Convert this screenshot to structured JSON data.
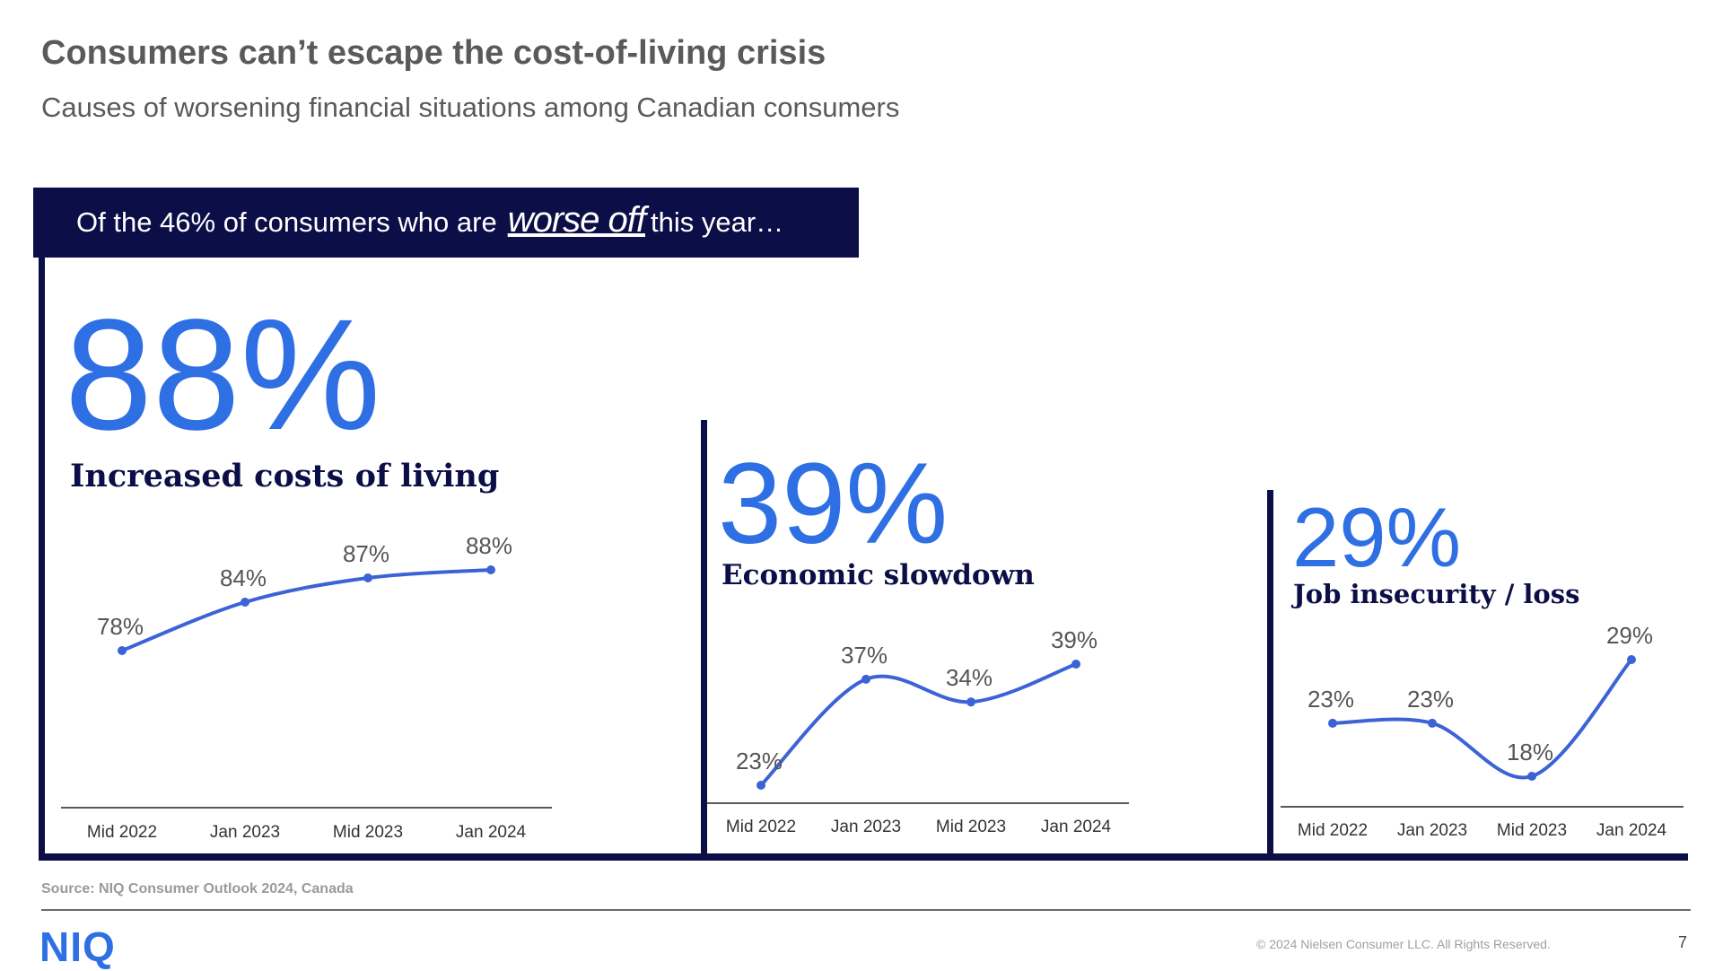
{
  "header": {
    "title": "Consumers can’t escape the cost-of-living crisis",
    "subtitle": "Causes of worsening financial situations among Canadian consumers"
  },
  "banner": {
    "prefix": "Of the 46% of consumers who are",
    "emphasis": "worse off",
    "suffix": "this year…"
  },
  "panels": [
    {
      "percent": "88%",
      "caption": "Increased costs of living"
    },
    {
      "percent": "39%",
      "caption": "Economic slowdown"
    },
    {
      "percent": "29%",
      "caption": "Job insecurity / loss"
    }
  ],
  "chart_data": [
    {
      "type": "line",
      "categories": [
        "Mid 2022",
        "Jan 2023",
        "Mid 2023",
        "Jan 2024"
      ],
      "series": [
        {
          "values": [
            78,
            84,
            87,
            88
          ]
        }
      ],
      "data_labels": [
        "78%",
        "84%",
        "87%",
        "88%"
      ],
      "color": "#3c63d6"
    },
    {
      "type": "line",
      "categories": [
        "Mid 2022",
        "Jan 2023",
        "Mid 2023",
        "Jan 2024"
      ],
      "series": [
        {
          "values": [
            23,
            37,
            34,
            39
          ]
        }
      ],
      "data_labels": [
        "23%",
        "37%",
        "34%",
        "39%"
      ],
      "color": "#3c63d6"
    },
    {
      "type": "line",
      "categories": [
        "Mid 2022",
        "Jan 2023",
        "Mid 2023",
        "Jan 2024"
      ],
      "series": [
        {
          "values": [
            23,
            23,
            18,
            29
          ]
        }
      ],
      "data_labels": [
        "23%",
        "23%",
        "18%",
        "29%"
      ],
      "color": "#3c63d6"
    }
  ],
  "footer": {
    "source": "Source: NIQ Consumer Outlook 2024, Canada",
    "logo": "NIQ",
    "copyright": "© 2024 Nielsen Consumer LLC. All Rights Reserved.",
    "page": "7"
  },
  "colors": {
    "navy": "#0c0f47",
    "accent": "#2f6fe4",
    "line": "#3c63d6"
  }
}
